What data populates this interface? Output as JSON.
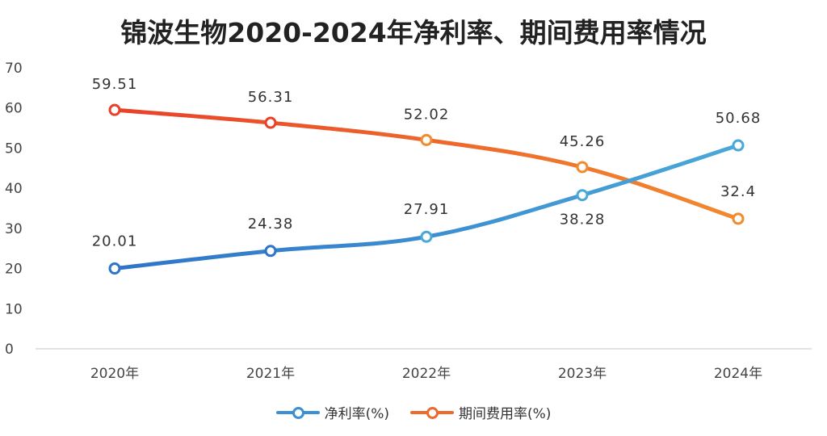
{
  "chart_data": {
    "type": "line",
    "title": "锦波生物2020-2024年净利率、期间费用率情况",
    "categories": [
      "2020年",
      "2021年",
      "2022年",
      "2023年",
      "2024年"
    ],
    "ylim": [
      0,
      70
    ],
    "yticks": [
      "0",
      "10",
      "20",
      "30",
      "40",
      "50",
      "60",
      "70"
    ],
    "grid": false,
    "legend_position": "bottom",
    "series": [
      {
        "name": "净利率(%)",
        "values": [
          20.01,
          24.38,
          27.91,
          38.28,
          50.68
        ],
        "labels": [
          "20.01",
          "24.38",
          "27.91",
          "38.28",
          "50.68"
        ],
        "color": "#2e74c8",
        "color_end": "#4aa8d8"
      },
      {
        "name": "期间费用率(%)",
        "values": [
          59.51,
          56.31,
          52.02,
          45.26,
          32.4
        ],
        "labels": [
          "59.51",
          "56.31",
          "52.02",
          "45.26",
          "32.4"
        ],
        "color": "#e8412a",
        "color_end": "#f28a2e"
      }
    ]
  }
}
